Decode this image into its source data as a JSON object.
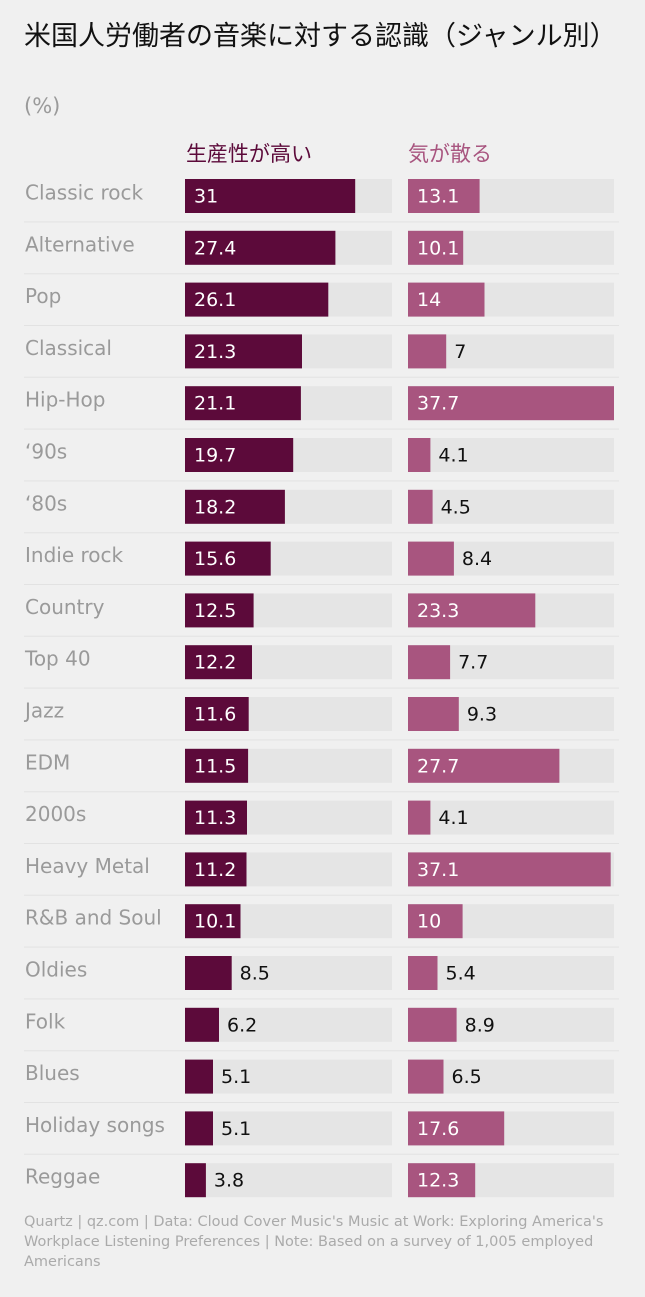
{
  "chart_data": {
    "type": "bar",
    "title": "米国人労働者の音楽に対する認識（ジャンル別）",
    "unit": "(%)",
    "categories": [
      "Classic rock",
      "Alternative",
      "Pop",
      "Classical",
      "Hip-Hop",
      "‘90s",
      "‘80s",
      "Indie rock",
      "Country",
      "Top 40",
      "Jazz",
      "EDM",
      "2000s",
      "Heavy Metal",
      "R&B and Soul",
      "Oldies",
      "Folk",
      "Blues",
      "Holiday songs",
      "Reggae"
    ],
    "series": [
      {
        "name": "生産性が高い",
        "color": "#5c0a3a",
        "values": [
          31,
          27.4,
          26.1,
          21.3,
          21.1,
          19.7,
          18.2,
          15.6,
          12.5,
          12.2,
          11.6,
          11.5,
          11.3,
          11.2,
          10.1,
          8.5,
          6.2,
          5.1,
          5.1,
          3.8
        ]
      },
      {
        "name": "気が散る",
        "color": "#a8557f",
        "values": [
          13.1,
          10.1,
          14,
          7,
          37.7,
          4.1,
          4.5,
          8.4,
          23.3,
          7.7,
          9.3,
          27.7,
          4.1,
          37.1,
          10,
          5.4,
          8.9,
          6.5,
          17.6,
          12.3
        ]
      }
    ],
    "xlim": [
      0,
      37.7
    ],
    "grid": false,
    "legend": "top"
  },
  "colors": {
    "background": "#f0f0f0",
    "track": "#e5e5e5",
    "label": "#9a9a9a",
    "value_inside": "#ffffff",
    "value_outside": "#111111"
  },
  "footer": "Quartz | qz.com | Data: Cloud Cover Music's Music at Work: Exploring America's Workplace Listening Preferences | Note: Based on a survey of 1,005 employed Americans"
}
